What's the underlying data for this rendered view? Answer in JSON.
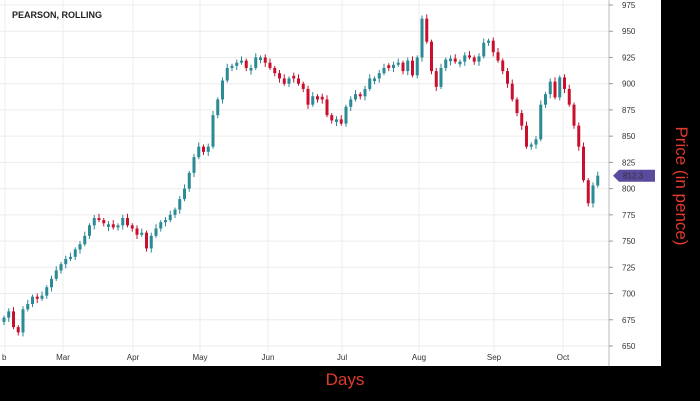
{
  "chart_data": {
    "type": "candlestick",
    "title": "PEARSON, ROLLING",
    "xlabel": "Days",
    "ylabel": "Price (in pence)",
    "ylim": [
      645,
      980
    ],
    "y_ticks": [
      650,
      675,
      700,
      725,
      750,
      775,
      800,
      825,
      850,
      875,
      900,
      925,
      950,
      975
    ],
    "x_tick_labels": [
      "b",
      "Mar",
      "Apr",
      "May",
      "Jun",
      "Jul",
      "Aug",
      "Sep",
      "Oct"
    ],
    "last_price_label": "812.3",
    "last_price": 812.3,
    "colors": {
      "up": "#2a8a96",
      "down": "#c8102e",
      "price_tag": "#5b4b9e",
      "axis_title": "#e03a2f"
    },
    "closes": [
      677,
      683,
      668,
      663,
      685,
      690,
      697,
      695,
      698,
      706,
      714,
      722,
      728,
      733,
      735,
      742,
      747,
      755,
      765,
      772,
      770,
      767,
      766,
      763,
      765,
      772,
      765,
      762,
      756,
      758,
      743,
      755,
      762,
      768,
      770,
      775,
      780,
      790,
      800,
      815,
      830,
      840,
      835,
      840,
      870,
      885,
      903,
      915,
      917,
      920,
      922,
      915,
      915,
      925,
      925,
      920,
      915,
      910,
      905,
      900,
      905,
      905,
      900,
      895,
      880,
      888,
      885,
      885,
      870,
      865,
      866,
      862,
      878,
      885,
      890,
      888,
      895,
      905,
      905,
      910,
      915,
      915,
      918,
      920,
      912,
      922,
      908,
      925,
      962,
      940,
      912,
      897,
      915,
      923,
      924,
      921,
      921,
      927,
      925,
      921,
      926,
      939,
      941,
      930,
      922,
      912,
      900,
      885,
      872,
      860,
      840,
      842,
      847,
      880,
      890,
      902,
      887,
      906,
      895,
      880,
      860,
      840,
      808,
      786,
      803,
      812.3
    ]
  }
}
